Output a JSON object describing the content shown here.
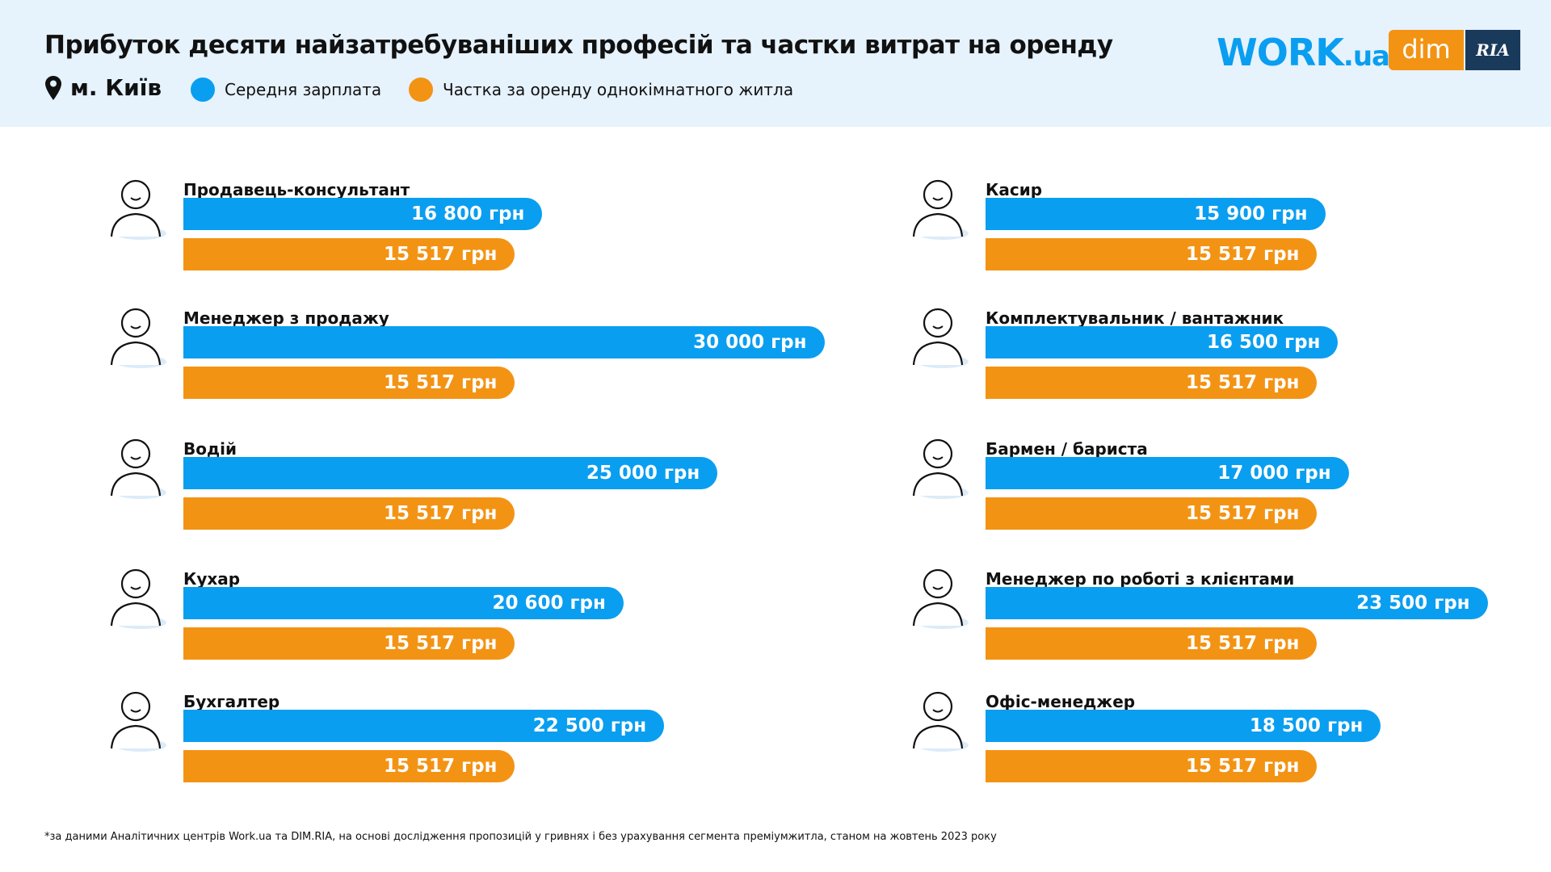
{
  "header": {
    "title": "Прибуток десяти найзатребуваніших професій та частки витрат на оренду",
    "location": "м. Київ",
    "legend": [
      {
        "label": "Середня зарплата",
        "color": "#0a9ef0"
      },
      {
        "label": "Частка за оренду однокімнатного житла",
        "color": "#f39314"
      }
    ],
    "logos": {
      "work": "WORK",
      "work_suffix": ".ua",
      "dim": "dim",
      "ria": "RIA"
    }
  },
  "chart_data": {
    "type": "bar",
    "unit": "грн",
    "series": [
      {
        "name": "Середня зарплата",
        "color": "#0a9ef0"
      },
      {
        "name": "Частка за оренду однокімнатного житла",
        "color": "#f39314"
      }
    ],
    "categories": [
      {
        "name": "Продавець-консультант",
        "salary": 16800,
        "salary_label": "16 800 грн",
        "rent": 15517,
        "rent_label": "15 517 грн",
        "icon": "person-icon"
      },
      {
        "name": "Менеджер з продажу",
        "salary": 30000,
        "salary_label": "30 000 грн",
        "rent": 15517,
        "rent_label": "15 517 грн",
        "icon": "headset-person-icon"
      },
      {
        "name": "Водій",
        "salary": 25000,
        "salary_label": "25 000 грн",
        "rent": 15517,
        "rent_label": "15 517 грн",
        "icon": "driver-icon"
      },
      {
        "name": "Кухар",
        "salary": 20600,
        "salary_label": "20 600 грн",
        "rent": 15517,
        "rent_label": "15 517 грн",
        "icon": "chef-icon"
      },
      {
        "name": "Бухгалтер",
        "salary": 22500,
        "salary_label": "22 500 грн",
        "rent": 15517,
        "rent_label": "15 517 грн",
        "icon": "accountant-icon"
      },
      {
        "name": "Касир",
        "salary": 15900,
        "salary_label": "15 900 грн",
        "rent": 15517,
        "rent_label": "15 517 грн",
        "icon": "cashier-icon"
      },
      {
        "name": "Комплектувальник / вантажник",
        "salary": 16500,
        "salary_label": "16 500 грн",
        "rent": 15517,
        "rent_label": "15 517 грн",
        "icon": "loader-icon"
      },
      {
        "name": "Бармен / бариста",
        "salary": 17000,
        "salary_label": "17 000 грн",
        "rent": 15517,
        "rent_label": "15 517 грн",
        "icon": "barista-icon"
      },
      {
        "name": "Менеджер по роботі з клієнтами",
        "salary": 23500,
        "salary_label": "23 500 грн",
        "rent": 15517,
        "rent_label": "15 517 грн",
        "icon": "laptop-person-icon"
      },
      {
        "name": "Офіс-менеджер",
        "salary": 18500,
        "salary_label": "18 500 грн",
        "rent": 15517,
        "rent_label": "15 517 грн",
        "icon": "office-person-icon"
      }
    ]
  },
  "footer": "*за даними Аналітичних центрів Work.ua та DIM.RIA, на основі дослідження пропозицій у гривнях і без урахування сегмента преміумжитла, станом на жовтень 2023 року"
}
